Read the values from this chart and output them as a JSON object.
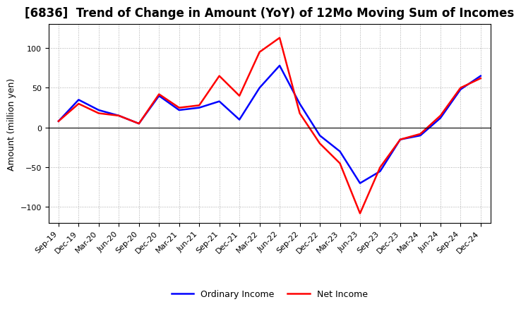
{
  "title": "[6836]  Trend of Change in Amount (YoY) of 12Mo Moving Sum of Incomes",
  "ylabel": "Amount (million yen)",
  "x_labels": [
    "Sep-19",
    "Dec-19",
    "Mar-20",
    "Jun-20",
    "Sep-20",
    "Dec-20",
    "Mar-21",
    "Jun-21",
    "Sep-21",
    "Dec-21",
    "Mar-22",
    "Jun-22",
    "Sep-22",
    "Dec-22",
    "Mar-23",
    "Jun-23",
    "Sep-23",
    "Dec-23",
    "Mar-24",
    "Jun-24",
    "Sep-24",
    "Dec-24"
  ],
  "ordinary_income": [
    8,
    35,
    22,
    15,
    5,
    40,
    22,
    25,
    33,
    10,
    50,
    78,
    30,
    -10,
    -30,
    -70,
    -55,
    -15,
    -10,
    12,
    48,
    65
  ],
  "net_income": [
    8,
    30,
    18,
    15,
    5,
    42,
    25,
    28,
    65,
    40,
    95,
    113,
    18,
    -20,
    -45,
    -108,
    -50,
    -15,
    -8,
    15,
    50,
    62
  ],
  "ylim": [
    -120,
    130
  ],
  "yticks": [
    -100,
    -50,
    0,
    50,
    100
  ],
  "ordinary_color": "#0000ff",
  "net_color": "#ff0000",
  "line_width": 1.8,
  "background_color": "#ffffff",
  "grid_color": "#aaaaaa",
  "title_fontsize": 12,
  "label_fontsize": 9,
  "tick_fontsize": 8,
  "legend_fontsize": 9
}
